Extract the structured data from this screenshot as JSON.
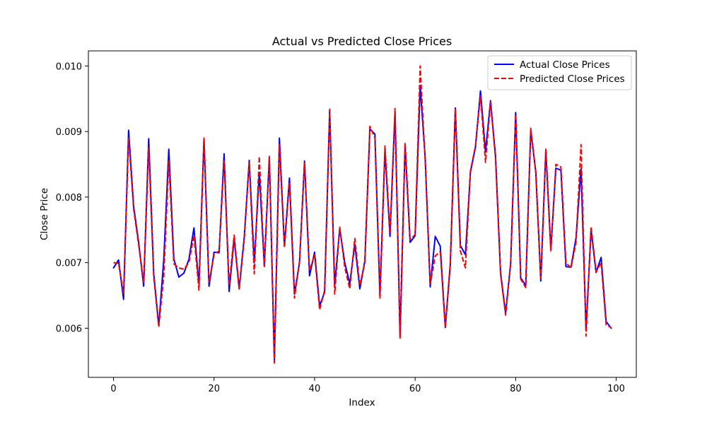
{
  "chart_data": {
    "type": "line",
    "title": "Actual vs Predicted Close Prices",
    "xlabel": "Index",
    "ylabel": "Close Price",
    "xlim": [
      -5,
      104
    ],
    "ylim": [
      0.00525,
      0.01023
    ],
    "xticks": [
      0,
      20,
      40,
      60,
      80,
      100
    ],
    "xtick_labels": [
      "0",
      "20",
      "40",
      "60",
      "80",
      "100"
    ],
    "yticks": [
      0.006,
      0.007,
      0.008,
      0.009,
      0.01
    ],
    "ytick_labels": [
      "0.006",
      "0.007",
      "0.008",
      "0.009",
      "0.010"
    ],
    "grid": false,
    "legend_position": "top-right",
    "series": [
      {
        "name": "Actual Close Prices",
        "color": "#0000ff",
        "style": "solid",
        "x": [
          0,
          1,
          2,
          3,
          4,
          5,
          6,
          7,
          8,
          9,
          10,
          11,
          12,
          13,
          14,
          15,
          16,
          17,
          18,
          19,
          20,
          21,
          22,
          23,
          24,
          25,
          26,
          27,
          28,
          29,
          30,
          31,
          32,
          33,
          34,
          35,
          36,
          37,
          38,
          39,
          40,
          41,
          42,
          43,
          44,
          45,
          46,
          47,
          48,
          49,
          50,
          51,
          52,
          53,
          54,
          55,
          56,
          57,
          58,
          59,
          60,
          61,
          62,
          63,
          64,
          65,
          66,
          67,
          68,
          69,
          70,
          71,
          72,
          73,
          74,
          75,
          76,
          77,
          78,
          79,
          80,
          81,
          82,
          83,
          84,
          85,
          86,
          87,
          88,
          89,
          90,
          91,
          92,
          93,
          94,
          95,
          96,
          97,
          98,
          99
        ],
        "y": [
          0.00692,
          0.00704,
          0.00644,
          0.00902,
          0.00786,
          0.00731,
          0.00664,
          0.00889,
          0.00683,
          0.00604,
          0.00705,
          0.00873,
          0.00706,
          0.00678,
          0.00684,
          0.00705,
          0.00753,
          0.00667,
          0.00889,
          0.00664,
          0.00716,
          0.00715,
          0.00866,
          0.00656,
          0.00737,
          0.0066,
          0.00738,
          0.00856,
          0.007,
          0.00838,
          0.00695,
          0.00862,
          0.00551,
          0.0089,
          0.00725,
          0.00829,
          0.00652,
          0.007,
          0.00855,
          0.0068,
          0.00716,
          0.00634,
          0.00655,
          0.00932,
          0.00665,
          0.00752,
          0.007,
          0.00668,
          0.00728,
          0.0066,
          0.00703,
          0.00904,
          0.00896,
          0.0065,
          0.00871,
          0.0074,
          0.0093,
          0.00587,
          0.0088,
          0.00731,
          0.00741,
          0.0097,
          0.0086,
          0.00663,
          0.0074,
          0.00725,
          0.00601,
          0.00697,
          0.00936,
          0.00726,
          0.00712,
          0.00838,
          0.00876,
          0.00962,
          0.00869,
          0.00947,
          0.00862,
          0.00684,
          0.00623,
          0.00698,
          0.00929,
          0.00677,
          0.00665,
          0.00902,
          0.00839,
          0.00672,
          0.00871,
          0.0072,
          0.00844,
          0.00841,
          0.00694,
          0.00693,
          0.00737,
          0.00843,
          0.00598,
          0.0075,
          0.00685,
          0.00708,
          0.0061,
          0.006
        ]
      },
      {
        "name": "Predicted Close Prices",
        "color": "#ff0000",
        "style": "dashed",
        "x": [
          0,
          1,
          2,
          3,
          4,
          5,
          6,
          7,
          8,
          9,
          10,
          11,
          12,
          13,
          14,
          15,
          16,
          17,
          18,
          19,
          20,
          21,
          22,
          23,
          24,
          25,
          26,
          27,
          28,
          29,
          30,
          31,
          32,
          33,
          34,
          35,
          36,
          37,
          38,
          39,
          40,
          41,
          42,
          43,
          44,
          45,
          46,
          47,
          48,
          49,
          50,
          51,
          52,
          53,
          54,
          55,
          56,
          57,
          58,
          59,
          60,
          61,
          62,
          63,
          64,
          65,
          66,
          67,
          68,
          69,
          70,
          71,
          72,
          73,
          74,
          75,
          76,
          77,
          78,
          79,
          80,
          81,
          82,
          83,
          84,
          85,
          86,
          87,
          88,
          89,
          90,
          91,
          92,
          93,
          94,
          95,
          96,
          97,
          98,
          99
        ],
        "y": [
          0.007,
          0.00699,
          0.00653,
          0.0089,
          0.00782,
          0.00727,
          0.0067,
          0.00875,
          0.00678,
          0.00602,
          0.0068,
          0.00855,
          0.00698,
          0.00692,
          0.0069,
          0.007,
          0.00742,
          0.00658,
          0.0089,
          0.0067,
          0.00712,
          0.00718,
          0.00855,
          0.00665,
          0.00742,
          0.0066,
          0.00735,
          0.00852,
          0.00683,
          0.00862,
          0.00694,
          0.00862,
          0.00547,
          0.0088,
          0.00723,
          0.00822,
          0.00646,
          0.00702,
          0.00852,
          0.00688,
          0.00712,
          0.00628,
          0.00658,
          0.00934,
          0.00652,
          0.00754,
          0.00693,
          0.0066,
          0.00737,
          0.00665,
          0.007,
          0.00908,
          0.0089,
          0.00645,
          0.00878,
          0.00745,
          0.00935,
          0.00585,
          0.00883,
          0.00735,
          0.00743,
          0.01,
          0.00856,
          0.00668,
          0.0071,
          0.00717,
          0.00601,
          0.007,
          0.00935,
          0.00718,
          0.00692,
          0.0084,
          0.00878,
          0.00955,
          0.00853,
          0.00945,
          0.00858,
          0.00682,
          0.0062,
          0.007,
          0.00926,
          0.00675,
          0.00662,
          0.00905,
          0.00838,
          0.00676,
          0.00873,
          0.00718,
          0.0085,
          0.00846,
          0.007,
          0.00692,
          0.0073,
          0.0088,
          0.00588,
          0.00755,
          0.00686,
          0.007,
          0.00605,
          0.00601
        ]
      }
    ]
  }
}
